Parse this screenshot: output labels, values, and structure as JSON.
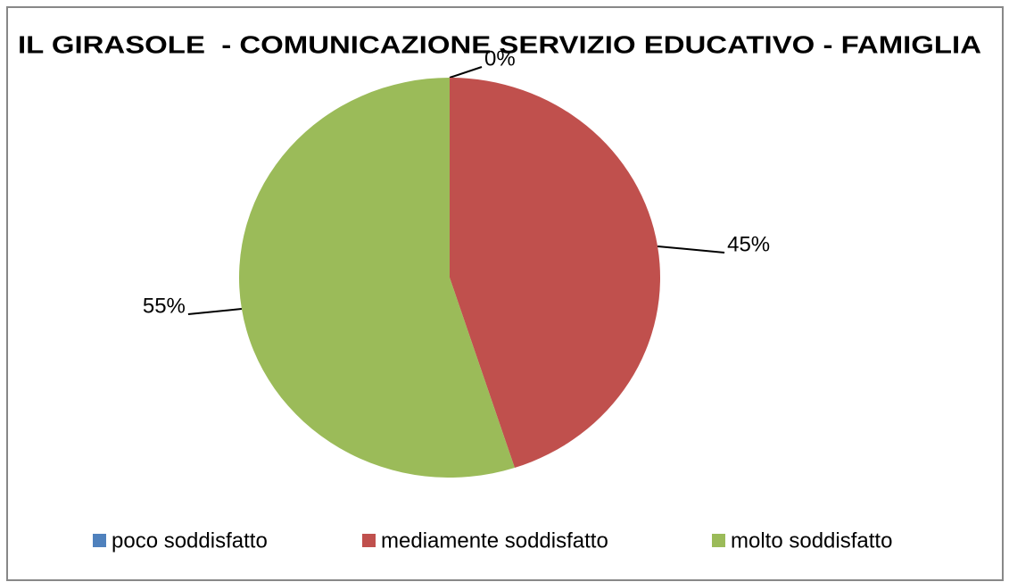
{
  "chart_data": {
    "type": "pie",
    "title": "IL GIRASOLE  - COMUNICAZIONE SERVIZIO EDUCATIVO - FAMIGLIA",
    "categories": [
      "poco soddisfatto",
      "mediamente soddisfatto",
      "molto soddisfatto"
    ],
    "values": [
      0,
      45,
      55
    ],
    "value_labels": [
      "0%",
      "45%",
      "55%"
    ],
    "colors": [
      "#4f81bd",
      "#c0504d",
      "#9bbb59"
    ],
    "legend": "bottom"
  }
}
